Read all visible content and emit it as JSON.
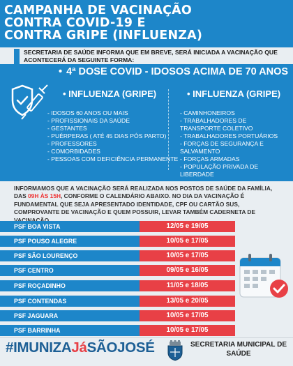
{
  "header": {
    "title_lines": [
      "CAMPANHA DE VACINAÇÃO",
      "CONTRA COVID-19 E",
      "CONTRA GRIPE (INFLUENZA)"
    ]
  },
  "intro": "SECRETARIA DE SAÚDE INFORMA QUE EM BREVE, SERÁ INICIADA A VACINAÇÃO QUE ACONTECERÁ DA SEGUINTE FORMA:",
  "dose": {
    "bullet": "•",
    "title": "4ª  DOSE COVID - IDOSOS  ACIMA DE 70 ANOS"
  },
  "influenza_left": {
    "title": "INFLUENZA (GRIPE)",
    "items": [
      "- IDOSOS 60 ANOS OU MAIS",
      "- PROFISSIONAIS DA SAÚDE",
      "- GESTANTES",
      "- PUÉRPERAS ( ATÉ 45 DIAS PÓS PARTO)",
      "- PROFESSORES",
      "- COMORBIDADES",
      "- PESSOAS COM DEFICIÊNCIA PERMANENTE"
    ]
  },
  "influenza_right": {
    "title": "INFLUENZA (GRIPE)",
    "items": [
      "- CAMINHONEIROS",
      "- TRABALHADORES DE TRANSPORTE COLETIVO",
      "- TRABALHADORES PORTUÁRIOS",
      "- FORÇAS DE SEGURANÇA E SALVAMENTO",
      "- FORÇAS ARMADAS",
      "- POPULAÇÃO PRIVADA DE LIBERDADE"
    ]
  },
  "notice": {
    "part1": "INFORMAMOS QUE A VACINAÇÃO SERÁ REALIZADA NOS POSTOS DE SAÚDE DA FAMÍLIA, DAS ",
    "highlight": "09H ÀS 15H",
    "part2": ", CONFORME O CALENDÁRIO ABAIXO. NO DIA DA VACINAÇÃO É FUNDAMENTAL QUE SEJA APRESENTADO IDENTIDADE, CPF OU CARTÃO SUS, COMPROVANTE DE VACINAÇÃO E QUEM POSSUIR, LEVAR TAMBÉM CADERNETA DE VACINAÇÃO."
  },
  "schedule": [
    {
      "site": "PSF BOA VISTA",
      "dates": "12/05  e  19/05"
    },
    {
      "site": "PSF POUSO ALEGRE",
      "dates": "10/05  e  17/05"
    },
    {
      "site": "PSF SÃO LOURENÇO",
      "dates": "10/05  e  17/05"
    },
    {
      "site": "PSF CENTRO",
      "dates": "09/05  e  16/05"
    },
    {
      "site": "PSF ROÇADINHO",
      "dates": "11/05  e  18/05"
    },
    {
      "site": "PSF CONTENDAS",
      "dates": "13/05  e  20/05"
    },
    {
      "site": "PSF JAGUARA",
      "dates": "10/05  e  17/05"
    },
    {
      "site": "PSF BARRINHA",
      "dates": "10/05  e  17/05"
    }
  ],
  "footer": {
    "hashtag_part1": "#IMUNIZA",
    "hashtag_part2": "Já",
    "hashtag_part3": "SÃOJOSÉ",
    "secretaria": "SECRETARIA MUNICIPAL DE SAÚDE"
  },
  "icons": {
    "vaccine": "syringe-shield-icon",
    "calendar": "calendar-check-icon",
    "crest": "municipal-crest-icon"
  },
  "colors": {
    "primary_blue": "#1d86c9",
    "accent_red": "#e84046",
    "dark_blue": "#1d5f95",
    "background": "#e9eef2"
  }
}
